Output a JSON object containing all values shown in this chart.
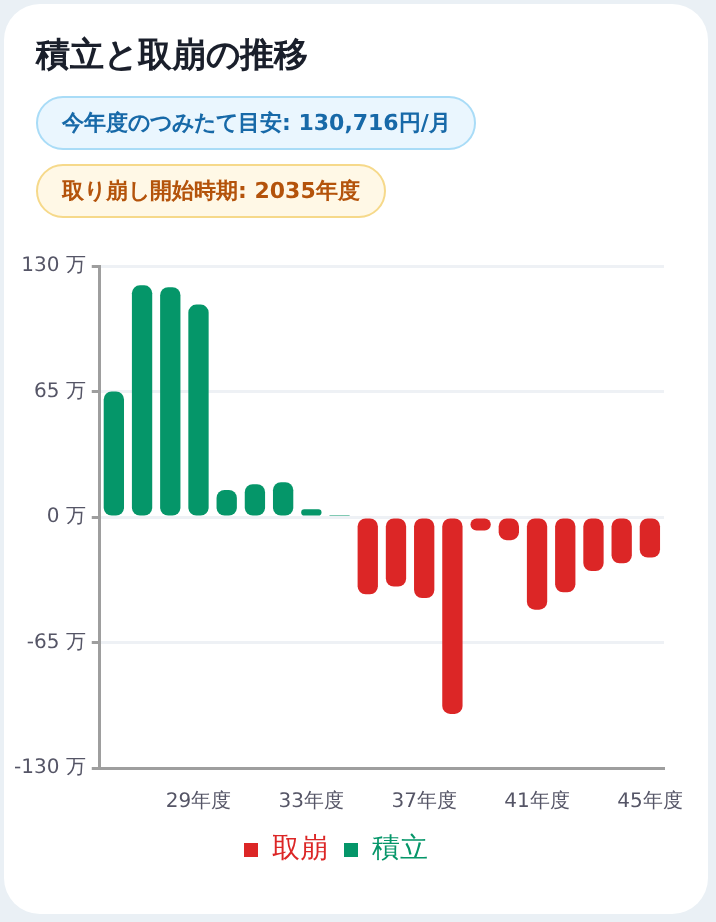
{
  "chart_data": {
    "type": "bar",
    "title": "積立と取崩の推移",
    "annotations": [
      "今年度のつみたて目安: 130,716円/月",
      "取り崩し開始時期: 2035年度"
    ],
    "categories": [
      null,
      null,
      null,
      "29年度",
      null,
      null,
      null,
      "33年度",
      null,
      null,
      null,
      "37年度",
      null,
      null,
      null,
      "41年度",
      null,
      null,
      null,
      "45年度"
    ],
    "series": [
      {
        "name": "取崩",
        "color": "#dc2626",
        "values": [
          null,
          null,
          null,
          null,
          null,
          null,
          null,
          null,
          null,
          -40,
          -36,
          -42,
          -102,
          -7,
          -12,
          -48,
          -39,
          -28,
          -24,
          -21
        ]
      },
      {
        "name": "積立",
        "color": "#059669",
        "values": [
          65,
          120,
          119,
          110,
          14,
          17,
          18,
          4,
          1,
          null,
          null,
          null,
          null,
          null,
          null,
          null,
          null,
          null,
          null,
          null
        ]
      }
    ],
    "ylim": [
      -130,
      130
    ],
    "yticks": [
      {
        "value": -130,
        "label": "-130 万"
      },
      {
        "value": -65,
        "label": "-65 万"
      },
      {
        "value": 0,
        "label": "0 万"
      },
      {
        "value": 65,
        "label": "65 万"
      },
      {
        "value": 130,
        "label": "130 万"
      }
    ],
    "grid": "y",
    "legend": "bottom",
    "stacked": true
  }
}
